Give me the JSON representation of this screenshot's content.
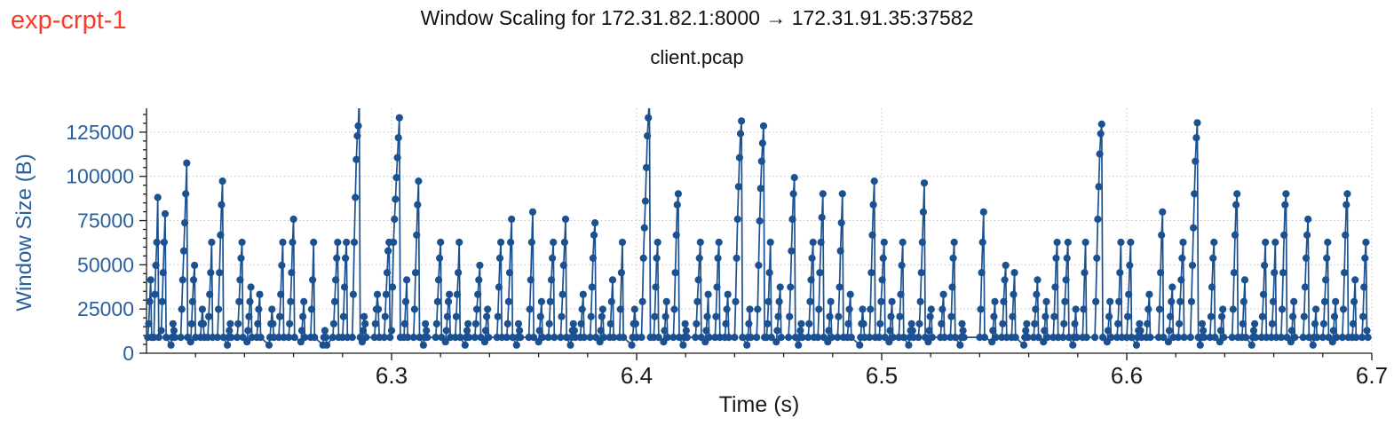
{
  "annotation": {
    "label": "exp-crpt-1",
    "color": "#f93b28"
  },
  "chart_data": {
    "type": "scatter",
    "style": "stem-like line+markers (TCP window scaling trace)",
    "title": "Window Scaling for 172.31.82.1:8000 → 172.31.91.35:37582",
    "subtitle": "client.pcap",
    "xlabel": "Time (s)",
    "ylabel": "Window Size (B)",
    "xlim": [
      6.2,
      6.7
    ],
    "ylim": [
      0,
      138500
    ],
    "xticks": [
      6.3,
      6.4,
      6.5,
      6.6,
      6.7
    ],
    "yticks": [
      0,
      25000,
      50000,
      75000,
      100000,
      125000
    ],
    "x_minor_step": 0.02,
    "y_minor_step": 5000,
    "grid": {
      "major_x": true,
      "major_y": true,
      "style": "dotted",
      "color": "#c4c4c4"
    },
    "legend": "none",
    "colors": {
      "series": "#1b5191",
      "y_axis_text": "#2a5f9f",
      "x_axis_text": "#1a1a1a",
      "spine": "#1a1a1a"
    },
    "marker": "circle",
    "marker_radius_px": 4.1,
    "burst_point_dt": 0.0004,
    "bursts": [
      [
        6.2005,
        [
          8960,
          16640,
          29184,
          41472,
          8960
        ]
      ],
      [
        6.203,
        [
          8960,
          33280,
          49664,
          62720,
          88064,
          8960
        ]
      ],
      [
        6.206,
        [
          12800,
          29184,
          45568,
          62720,
          78848,
          8960
        ]
      ],
      [
        6.21,
        [
          4608,
          8960,
          16640,
          12800,
          8960
        ]
      ],
      [
        6.214,
        [
          8960,
          24832,
          41472,
          57856,
          73728,
          90112,
          107520,
          8960
        ]
      ],
      [
        6.218,
        [
          6400,
          16640,
          29184,
          41472,
          49664,
          8960
        ]
      ],
      [
        6.222,
        [
          8960,
          16640,
          24832,
          16640,
          8960
        ]
      ],
      [
        6.225,
        [
          8960,
          20736,
          33280,
          45568,
          62720,
          8960
        ]
      ],
      [
        6.229,
        [
          8960,
          24832,
          45568,
          66816,
          83968,
          97280,
          8960
        ]
      ],
      [
        6.233,
        [
          4608,
          8960,
          12800,
          16640,
          8960
        ]
      ],
      [
        6.237,
        [
          8960,
          16640,
          29184,
          41472,
          53760,
          62720,
          8960
        ]
      ],
      [
        6.241,
        [
          6400,
          12800,
          20736,
          29184,
          37376,
          8960
        ]
      ],
      [
        6.245,
        [
          8960,
          16640,
          24832,
          33280,
          8960
        ]
      ],
      [
        6.25,
        [
          4608,
          8960,
          16640,
          24832,
          16640,
          8960
        ]
      ],
      [
        6.254,
        [
          8960,
          20736,
          33280,
          49664,
          62720,
          8960
        ]
      ],
      [
        6.258,
        [
          8960,
          16640,
          29184,
          45568,
          62720,
          75776,
          8960
        ]
      ],
      [
        6.263,
        [
          6400,
          12800,
          20736,
          29184,
          8960
        ]
      ],
      [
        6.267,
        [
          8960,
          24832,
          41472,
          62720,
          8960
        ]
      ],
      [
        6.272,
        [
          4608,
          8960,
          12800,
          8960,
          4608
        ]
      ],
      [
        6.276,
        [
          8960,
          16640,
          29184,
          41472,
          53760,
          62720,
          8960
        ]
      ],
      [
        6.28,
        [
          8960,
          20736,
          37376,
          53760,
          62720,
          8960
        ]
      ],
      [
        6.284,
        [
          8960,
          33280,
          62720,
          88064,
          109568,
          122880,
          128512,
          145000,
          8960
        ]
      ],
      [
        6.288,
        [
          6400,
          12800,
          20736,
          16640,
          8960
        ]
      ],
      [
        6.293,
        [
          8960,
          16640,
          24832,
          33280,
          24832,
          8960
        ]
      ],
      [
        6.297,
        [
          8960,
          20736,
          33280,
          45568,
          57856,
          62720,
          8960
        ]
      ],
      [
        6.3,
        [
          12800,
          37376,
          62720,
          75776,
          87040,
          99328,
          110592,
          121856,
          133120,
          8960
        ]
      ],
      [
        6.305,
        [
          8960,
          16640,
          29184,
          41472,
          8960
        ]
      ],
      [
        6.309,
        [
          8960,
          24832,
          45568,
          66816,
          83968,
          97280,
          8960
        ]
      ],
      [
        6.313,
        [
          4608,
          8960,
          16640,
          12800,
          8960
        ]
      ],
      [
        6.318,
        [
          8960,
          16640,
          29184,
          41472,
          53760,
          62720,
          8960
        ]
      ],
      [
        6.322,
        [
          6400,
          12800,
          20736,
          29184,
          33280,
          8960
        ]
      ],
      [
        6.326,
        [
          8960,
          20736,
          33280,
          45568,
          62720,
          8960
        ]
      ],
      [
        6.33,
        [
          4608,
          8960,
          12800,
          16640,
          8960
        ]
      ],
      [
        6.334,
        [
          8960,
          16640,
          24832,
          33280,
          41472,
          49664,
          8960
        ]
      ],
      [
        6.338,
        [
          6400,
          12800,
          20736,
          24832,
          8960
        ]
      ],
      [
        6.343,
        [
          8960,
          20736,
          37376,
          53760,
          62720,
          8960
        ]
      ],
      [
        6.347,
        [
          8960,
          16640,
          29184,
          45568,
          62720,
          75776,
          8960
        ]
      ],
      [
        6.351,
        [
          4608,
          8960,
          16640,
          12800,
          8960
        ]
      ],
      [
        6.356,
        [
          8960,
          24832,
          41472,
          62720,
          79872,
          8960
        ]
      ],
      [
        6.36,
        [
          6400,
          12800,
          20736,
          29184,
          8960
        ]
      ],
      [
        6.364,
        [
          8960,
          16640,
          29184,
          41472,
          53760,
          62720,
          8960
        ]
      ],
      [
        6.369,
        [
          8960,
          20736,
          33280,
          49664,
          62720,
          75776,
          8960
        ]
      ],
      [
        6.373,
        [
          4608,
          8960,
          12800,
          16640,
          12800,
          8960
        ]
      ],
      [
        6.377,
        [
          8960,
          16640,
          24832,
          33280,
          8960
        ]
      ],
      [
        6.381,
        [
          8960,
          20736,
          37376,
          53760,
          66816,
          73728,
          8960
        ]
      ],
      [
        6.385,
        [
          6400,
          12800,
          20736,
          24832,
          8960
        ]
      ],
      [
        6.389,
        [
          8960,
          16640,
          29184,
          41472,
          8960
        ]
      ],
      [
        6.393,
        [
          8960,
          24832,
          45568,
          62720,
          8960
        ]
      ],
      [
        6.398,
        [
          4608,
          8960,
          16640,
          24832,
          16640,
          8960
        ]
      ],
      [
        6.402,
        [
          8960,
          29184,
          53760,
          70912,
          86016,
          104960,
          122880,
          133120,
          145000,
          8960
        ]
      ],
      [
        6.407,
        [
          8960,
          20736,
          37376,
          53760,
          62720,
          8960
        ]
      ],
      [
        6.411,
        [
          6400,
          12800,
          20736,
          29184,
          8960
        ]
      ],
      [
        6.415,
        [
          8960,
          24832,
          45568,
          66816,
          83968,
          90112,
          8960
        ]
      ],
      [
        6.419,
        [
          4608,
          8960,
          16640,
          12800,
          8960
        ]
      ],
      [
        6.424,
        [
          8960,
          16640,
          29184,
          41472,
          53760,
          62720,
          8960
        ]
      ],
      [
        6.428,
        [
          6400,
          12800,
          20736,
          33280,
          8960
        ]
      ],
      [
        6.432,
        [
          8960,
          20736,
          37376,
          53760,
          62720,
          8960
        ]
      ],
      [
        6.436,
        [
          8960,
          16640,
          24832,
          33280,
          8960
        ]
      ],
      [
        6.44,
        [
          8960,
          29184,
          53760,
          75776,
          94208,
          110592,
          124160,
          131328,
          8960
        ]
      ],
      [
        6.445,
        [
          4608,
          8960,
          16640,
          24832,
          8960
        ]
      ],
      [
        6.449,
        [
          8960,
          24832,
          49664,
          74752,
          93184,
          108544,
          118784,
          128512,
          8960
        ]
      ],
      [
        6.453,
        [
          8960,
          16640,
          29184,
          45568,
          62720,
          8960
        ]
      ],
      [
        6.457,
        [
          6400,
          12800,
          20736,
          29184,
          37376,
          8960
        ]
      ],
      [
        6.462,
        [
          8960,
          20736,
          37376,
          57856,
          75776,
          90112,
          99328,
          8960
        ]
      ],
      [
        6.466,
        [
          4608,
          8960,
          12800,
          16640,
          8960
        ]
      ],
      [
        6.47,
        [
          8960,
          16640,
          29184,
          41472,
          53760,
          62720,
          8960
        ]
      ],
      [
        6.474,
        [
          8960,
          24832,
          45568,
          62720,
          76800,
          90112,
          8960
        ]
      ],
      [
        6.478,
        [
          6400,
          12800,
          20736,
          29184,
          8960
        ]
      ],
      [
        6.482,
        [
          8960,
          20736,
          37376,
          57856,
          73728,
          90112,
          8960
        ]
      ],
      [
        6.486,
        [
          8960,
          16640,
          24832,
          33280,
          8960
        ]
      ],
      [
        6.491,
        [
          4608,
          8960,
          16640,
          24832,
          16640,
          8960
        ]
      ],
      [
        6.495,
        [
          8960,
          24832,
          45568,
          66816,
          83968,
          97280,
          8960
        ]
      ],
      [
        6.499,
        [
          8960,
          16640,
          29184,
          41472,
          53760,
          62720,
          8960
        ]
      ],
      [
        6.503,
        [
          6400,
          12800,
          20736,
          29184,
          8960
        ]
      ],
      [
        6.507,
        [
          8960,
          20736,
          33280,
          49664,
          62720,
          8960
        ]
      ],
      [
        6.511,
        [
          4608,
          8960,
          12800,
          16640,
          12800,
          8960
        ]
      ],
      [
        6.515,
        [
          8960,
          16640,
          29184,
          45568,
          62720,
          79872,
          96256,
          8960
        ]
      ],
      [
        6.519,
        [
          6400,
          12800,
          20736,
          24832,
          8960
        ]
      ],
      [
        6.524,
        [
          8960,
          16640,
          24832,
          33280,
          8960
        ]
      ],
      [
        6.528,
        [
          8960,
          20736,
          37376,
          53760,
          62720,
          8960
        ]
      ],
      [
        6.532,
        [
          4608,
          8960,
          16640,
          12800,
          8960
        ]
      ],
      [
        6.54,
        [
          8960,
          24832,
          45568,
          62720,
          79872,
          8960
        ]
      ],
      [
        6.545,
        [
          6400,
          12800,
          20736,
          29184,
          8960
        ]
      ],
      [
        6.549,
        [
          8960,
          16640,
          29184,
          41472,
          49664,
          8960
        ]
      ],
      [
        6.553,
        [
          8960,
          20736,
          33280,
          45568,
          8960
        ]
      ],
      [
        6.558,
        [
          4608,
          8960,
          12800,
          16640,
          8960
        ]
      ],
      [
        6.562,
        [
          8960,
          16640,
          24832,
          33280,
          41472,
          8960
        ]
      ],
      [
        6.566,
        [
          6400,
          12800,
          20736,
          29184,
          8960
        ]
      ],
      [
        6.57,
        [
          8960,
          20736,
          37376,
          53760,
          62720,
          8960
        ]
      ],
      [
        6.574,
        [
          8960,
          16640,
          29184,
          41472,
          53760,
          62720,
          8960
        ]
      ],
      [
        6.578,
        [
          4608,
          8960,
          16640,
          24832,
          8960
        ]
      ],
      [
        6.582,
        [
          8960,
          24832,
          45568,
          62720,
          8960
        ]
      ],
      [
        6.587,
        [
          8960,
          29184,
          53760,
          75776,
          94208,
          112640,
          124160,
          129536,
          8960
        ]
      ],
      [
        6.592,
        [
          6400,
          12800,
          20736,
          29184,
          8960
        ]
      ],
      [
        6.596,
        [
          8960,
          16640,
          29184,
          45568,
          62720,
          8960
        ]
      ],
      [
        6.6,
        [
          8960,
          20736,
          33280,
          49664,
          62720,
          8960
        ]
      ],
      [
        6.604,
        [
          4608,
          8960,
          12800,
          16640,
          12800,
          8960
        ]
      ],
      [
        6.608,
        [
          8960,
          16640,
          24832,
          33280,
          8960
        ]
      ],
      [
        6.613,
        [
          8960,
          24832,
          45568,
          66816,
          79872,
          8960
        ]
      ],
      [
        6.617,
        [
          6400,
          12800,
          20736,
          29184,
          37376,
          8960
        ]
      ],
      [
        6.621,
        [
          8960,
          16640,
          29184,
          41472,
          53760,
          62720,
          8960
        ]
      ],
      [
        6.626,
        [
          8960,
          29184,
          49664,
          70912,
          90112,
          108544,
          121856,
          130304,
          8960
        ]
      ],
      [
        6.63,
        [
          4608,
          8960,
          16640,
          12800,
          8960
        ]
      ],
      [
        6.634,
        [
          8960,
          20736,
          37376,
          53760,
          62720,
          8960
        ]
      ],
      [
        6.638,
        [
          6400,
          12800,
          20736,
          24832,
          8960
        ]
      ],
      [
        6.643,
        [
          8960,
          24832,
          45568,
          66816,
          83968,
          90112,
          8960
        ]
      ],
      [
        6.647,
        [
          8960,
          16640,
          29184,
          41472,
          8960
        ]
      ],
      [
        6.651,
        [
          4608,
          8960,
          12800,
          16640,
          8960
        ]
      ],
      [
        6.655,
        [
          8960,
          20736,
          33280,
          49664,
          62720,
          8960
        ]
      ],
      [
        6.659,
        [
          8960,
          16640,
          29184,
          45568,
          62720,
          8960
        ]
      ],
      [
        6.663,
        [
          8960,
          24832,
          45568,
          66816,
          83968,
          90112,
          8960
        ]
      ],
      [
        6.667,
        [
          6400,
          12800,
          20736,
          29184,
          8960
        ]
      ],
      [
        6.672,
        [
          8960,
          20736,
          37376,
          53760,
          66816,
          75776,
          8960
        ]
      ],
      [
        6.676,
        [
          4608,
          8960,
          16640,
          24832,
          8960
        ]
      ],
      [
        6.68,
        [
          8960,
          16640,
          29184,
          41472,
          53760,
          62720,
          8960
        ]
      ],
      [
        6.684,
        [
          6400,
          12800,
          20736,
          29184,
          8960
        ]
      ],
      [
        6.688,
        [
          8960,
          24832,
          45568,
          66816,
          83968,
          90112,
          8960
        ]
      ],
      [
        6.692,
        [
          8960,
          16640,
          29184,
          41472,
          8960
        ]
      ],
      [
        6.696,
        [
          8960,
          20736,
          37376,
          53760,
          62720,
          12800,
          8960
        ]
      ]
    ]
  }
}
